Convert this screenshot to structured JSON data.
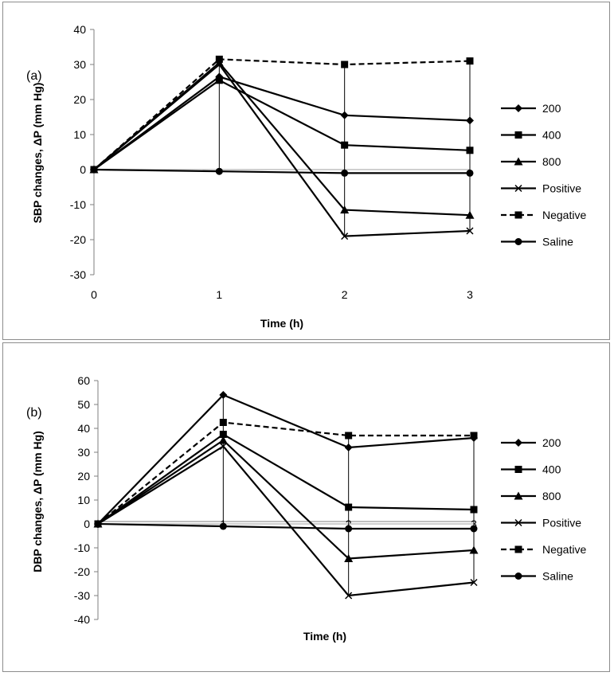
{
  "chart_data": [
    {
      "type": "line",
      "panel_label": "(a)",
      "xlabel": "Time (h)",
      "ylabel": "SBP changes, ΔP (mm Hg)",
      "x": [
        0,
        1,
        2,
        3
      ],
      "xlim": [
        0,
        3
      ],
      "ylim": [
        -30,
        40
      ],
      "yticks": [
        -30,
        -20,
        -10,
        0,
        10,
        20,
        30,
        40
      ],
      "xticks": [
        0,
        1,
        2,
        3
      ],
      "grid": false,
      "legend_position": "right",
      "series": [
        {
          "name": "200",
          "marker": "diamond",
          "dash": false,
          "values": [
            0,
            26.5,
            15.5,
            14
          ]
        },
        {
          "name": "400",
          "marker": "square",
          "dash": false,
          "values": [
            0,
            25.5,
            7,
            5.5
          ]
        },
        {
          "name": "800",
          "marker": "triangle",
          "dash": false,
          "values": [
            0,
            30.5,
            -11.5,
            -13
          ]
        },
        {
          "name": "Positive",
          "marker": "x",
          "dash": false,
          "values": [
            0,
            30,
            -19,
            -17.5
          ]
        },
        {
          "name": "Negative",
          "marker": "square",
          "dash": true,
          "values": [
            0,
            31.5,
            30,
            31
          ]
        },
        {
          "name": "Saline",
          "marker": "circle",
          "dash": false,
          "values": [
            0,
            -0.5,
            -1,
            -1
          ]
        }
      ]
    },
    {
      "type": "line",
      "panel_label": "(b)",
      "xlabel": "Time (h)",
      "ylabel": "DBP changes, ΔP (mm Hg)",
      "x": [
        0,
        1,
        2,
        3
      ],
      "xlim": [
        0,
        3
      ],
      "ylim": [
        -40,
        60
      ],
      "yticks": [
        -40,
        -30,
        -20,
        -10,
        0,
        10,
        20,
        30,
        40,
        50,
        60
      ],
      "xticks": [
        0,
        1,
        2,
        3
      ],
      "grid": false,
      "legend_position": "right",
      "series": [
        {
          "name": "200",
          "marker": "diamond",
          "dash": false,
          "values": [
            0,
            54,
            32,
            36
          ]
        },
        {
          "name": "400",
          "marker": "square",
          "dash": false,
          "values": [
            0,
            37.5,
            7,
            6
          ]
        },
        {
          "name": "800",
          "marker": "triangle",
          "dash": false,
          "values": [
            0,
            35,
            -14.5,
            -11
          ]
        },
        {
          "name": "Positive",
          "marker": "x",
          "dash": false,
          "values": [
            0,
            32.5,
            -30,
            -24.5
          ]
        },
        {
          "name": "Negative",
          "marker": "square",
          "dash": true,
          "values": [
            0,
            42.5,
            37,
            37
          ]
        },
        {
          "name": "Saline",
          "marker": "circle",
          "dash": false,
          "values": [
            0,
            -1,
            -2,
            -2
          ]
        }
      ]
    }
  ],
  "colors": {
    "line": "#000000",
    "zero_line": "#bfbfbf",
    "axis": "#7f7f7f"
  }
}
